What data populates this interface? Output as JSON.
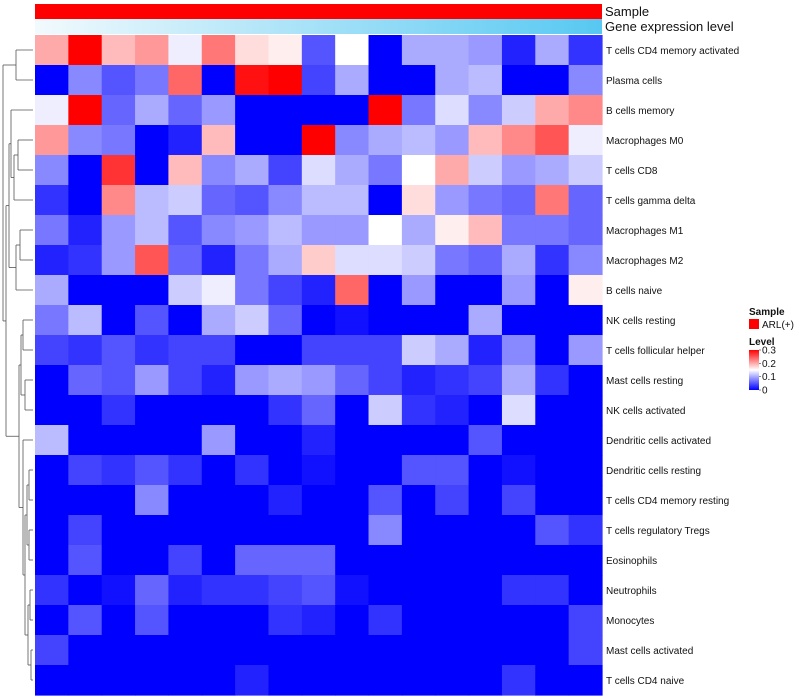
{
  "colors": {
    "low": "#0000ff",
    "mid": "#ffffff",
    "high": "#ff0000",
    "sample_bar": "#ff0000",
    "expr_light": "#f2fafd",
    "expr_dark": "#57c8f2",
    "dendrogram": "#555555"
  },
  "chart_data": {
    "type": "heatmap",
    "title": "",
    "annotation_tracks": [
      {
        "name": "Sample",
        "kind": "categorical",
        "value": "ARL(+)"
      },
      {
        "name": "Gene expression level",
        "kind": "gradient"
      }
    ],
    "rows": [
      "T cells CD4 memory activated",
      "Plasma cells",
      "B cells memory",
      "Macrophages M0",
      "T cells CD8",
      "T cells gamma delta",
      "Macrophages M1",
      "Macrophages M2",
      "B cells naive",
      "NK cells resting",
      "T cells follicular helper",
      "Mast cells resting",
      "NK cells activated",
      "Dendritic cells activated",
      "Dendritic cells resting",
      "T cells CD4 memory resting",
      "T cells regulatory  Tregs",
      "Eosinophils",
      "Neutrophils",
      "Monocytes",
      "Mast cells activated",
      "T cells CD4 naive"
    ],
    "n_columns": 17,
    "values": [
      [
        0.2,
        0.3,
        0.19,
        0.21,
        0.14,
        0.23,
        0.17,
        0.16,
        0.05,
        0.15,
        0.0,
        0.1,
        0.1,
        0.09,
        0.02,
        0.1,
        0.03
      ],
      [
        0.0,
        0.08,
        0.05,
        0.07,
        0.24,
        0.0,
        0.29,
        0.3,
        0.04,
        0.1,
        0.0,
        0.0,
        0.1,
        0.11,
        0.0,
        0.0,
        0.08
      ],
      [
        0.14,
        0.3,
        0.06,
        0.1,
        0.06,
        0.09,
        0.0,
        0.0,
        0.0,
        0.0,
        0.3,
        0.07,
        0.13,
        0.08,
        0.12,
        0.2,
        0.22
      ],
      [
        0.21,
        0.08,
        0.07,
        0.0,
        0.02,
        0.19,
        0.0,
        0.0,
        0.3,
        0.08,
        0.1,
        0.11,
        0.09,
        0.19,
        0.22,
        0.25,
        0.14
      ],
      [
        0.08,
        0.0,
        0.27,
        0.0,
        0.19,
        0.08,
        0.1,
        0.04,
        0.13,
        0.1,
        0.07,
        0.15,
        0.2,
        0.12,
        0.09,
        0.1,
        0.12
      ],
      [
        0.03,
        0.0,
        0.22,
        0.11,
        0.12,
        0.06,
        0.05,
        0.08,
        0.11,
        0.11,
        0.0,
        0.17,
        0.09,
        0.07,
        0.06,
        0.23,
        0.06
      ],
      [
        0.07,
        0.02,
        0.09,
        0.11,
        0.05,
        0.08,
        0.09,
        0.11,
        0.09,
        0.09,
        0.15,
        0.1,
        0.16,
        0.19,
        0.07,
        0.07,
        0.06
      ],
      [
        0.02,
        0.03,
        0.09,
        0.25,
        0.06,
        0.02,
        0.07,
        0.1,
        0.18,
        0.13,
        0.13,
        0.12,
        0.07,
        0.06,
        0.1,
        0.03,
        0.08
      ],
      [
        0.1,
        0.0,
        0.0,
        0.0,
        0.12,
        0.14,
        0.07,
        0.04,
        0.02,
        0.24,
        0.0,
        0.09,
        0.0,
        0.0,
        0.09,
        0.0,
        0.16
      ],
      [
        0.07,
        0.11,
        0.0,
        0.05,
        0.0,
        0.1,
        0.12,
        0.06,
        0.0,
        0.01,
        0.0,
        0.0,
        0.0,
        0.1,
        0.0,
        0.0,
        0.0
      ],
      [
        0.04,
        0.03,
        0.05,
        0.03,
        0.04,
        0.04,
        0.0,
        0.0,
        0.04,
        0.04,
        0.04,
        0.12,
        0.1,
        0.02,
        0.08,
        0.0,
        0.09
      ],
      [
        0.0,
        0.06,
        0.05,
        0.09,
        0.04,
        0.02,
        0.09,
        0.1,
        0.09,
        0.06,
        0.04,
        0.02,
        0.03,
        0.04,
        0.1,
        0.03,
        0.0
      ],
      [
        0.0,
        0.0,
        0.03,
        0.0,
        0.0,
        0.0,
        0.0,
        0.03,
        0.06,
        0.0,
        0.12,
        0.03,
        0.02,
        0.0,
        0.13,
        0.0,
        0.0
      ],
      [
        0.11,
        0.0,
        0.0,
        0.0,
        0.0,
        0.09,
        0.0,
        0.0,
        0.02,
        0.0,
        0.0,
        0.0,
        0.0,
        0.05,
        0.0,
        0.0,
        0.0
      ],
      [
        0.0,
        0.04,
        0.03,
        0.05,
        0.03,
        0.0,
        0.03,
        0.0,
        0.01,
        0.0,
        0.0,
        0.05,
        0.05,
        0.0,
        0.01,
        0.0,
        0.0
      ],
      [
        0.0,
        0.0,
        0.0,
        0.08,
        0.0,
        0.0,
        0.0,
        0.02,
        0.0,
        0.0,
        0.05,
        0.0,
        0.04,
        0.0,
        0.04,
        0.0,
        0.0
      ],
      [
        0.0,
        0.04,
        0.0,
        0.0,
        0.0,
        0.0,
        0.0,
        0.0,
        0.0,
        0.0,
        0.08,
        0.0,
        0.0,
        0.0,
        0.0,
        0.05,
        0.03
      ],
      [
        0.0,
        0.05,
        0.0,
        0.0,
        0.04,
        0.0,
        0.06,
        0.06,
        0.06,
        0.0,
        0.0,
        0.0,
        0.0,
        0.0,
        0.0,
        0.0,
        0.0
      ],
      [
        0.03,
        0.0,
        0.01,
        0.06,
        0.02,
        0.03,
        0.03,
        0.04,
        0.05,
        0.01,
        0.0,
        0.0,
        0.0,
        0.0,
        0.03,
        0.03,
        0.0
      ],
      [
        0.0,
        0.05,
        0.0,
        0.05,
        0.0,
        0.0,
        0.0,
        0.03,
        0.02,
        0.0,
        0.03,
        0.0,
        0.0,
        0.0,
        0.0,
        0.0,
        0.04
      ],
      [
        0.04,
        0.0,
        0.0,
        0.0,
        0.0,
        0.0,
        0.0,
        0.0,
        0.0,
        0.0,
        0.0,
        0.0,
        0.0,
        0.0,
        0.0,
        0.0,
        0.04
      ],
      [
        0.0,
        0.0,
        0.0,
        0.0,
        0.0,
        0.0,
        0.02,
        0.0,
        0.0,
        0.0,
        0.0,
        0.0,
        0.0,
        0.0,
        0.03,
        0.0,
        0.0
      ]
    ],
    "color_scale": {
      "min": 0,
      "max": 0.3
    },
    "legend": {
      "position": "right",
      "sample_title": "Sample",
      "sample_entry": "ARL(+)",
      "level_title": "Level",
      "ticks": [
        {
          "value": 0.3,
          "label": "0.3"
        },
        {
          "value": 0.2,
          "label": "0.2"
        },
        {
          "value": 0.1,
          "label": "0.1"
        },
        {
          "value": 0,
          "label": "0"
        }
      ]
    }
  }
}
